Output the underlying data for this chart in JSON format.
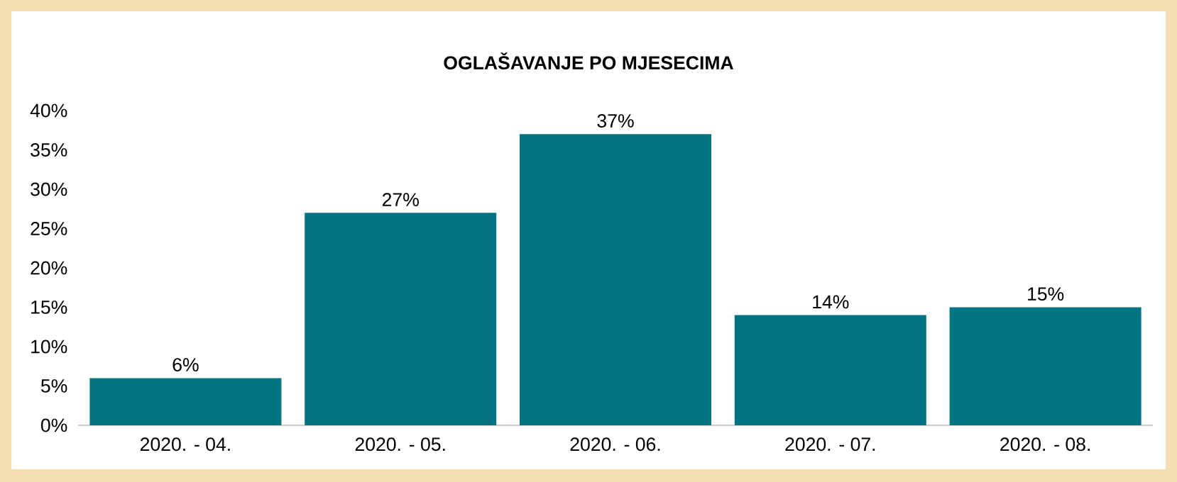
{
  "chart_data": {
    "type": "bar",
    "title": "OGLAŠAVANJE PO MJESECIMA",
    "categories": [
      "2020. - 04.",
      "2020. - 05.",
      "2020. - 06.",
      "2020. - 07.",
      "2020. - 08."
    ],
    "values": [
      6,
      27,
      37,
      14,
      15
    ],
    "color": "#027482",
    "ylim": [
      0,
      40
    ],
    "yticks": [
      {
        "value": 0,
        "label": "0%"
      },
      {
        "value": 5,
        "label": "5%"
      },
      {
        "value": 10,
        "label": "10%"
      },
      {
        "value": 15,
        "label": "15%"
      },
      {
        "value": 20,
        "label": "20%"
      },
      {
        "value": 25,
        "label": "25%"
      },
      {
        "value": 30,
        "label": "30%"
      },
      {
        "value": 35,
        "label": "35%"
      },
      {
        "value": 40,
        "label": "40%"
      }
    ],
    "value_labels": [
      "6%",
      "27%",
      "37%",
      "14%",
      "15%"
    ],
    "grid": false
  }
}
